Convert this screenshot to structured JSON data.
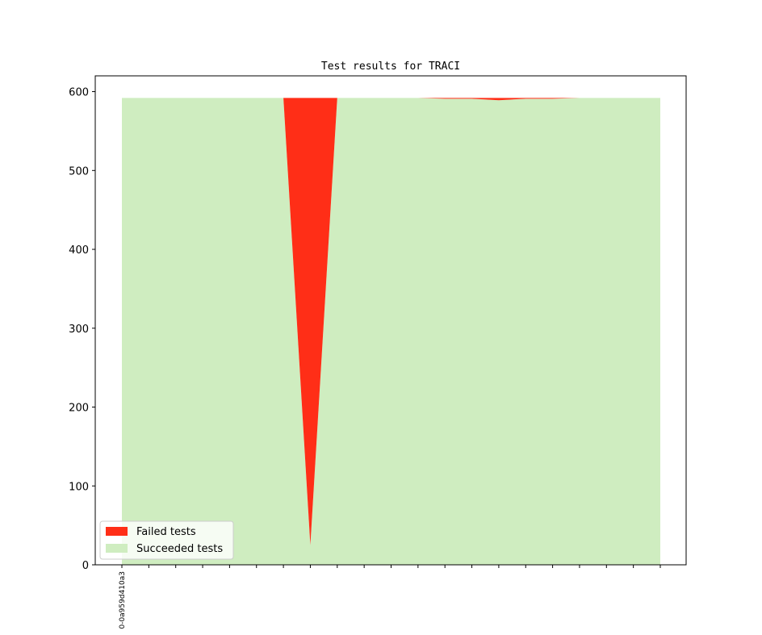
{
  "chart_data": {
    "type": "area",
    "title": "Test results for TRACI",
    "xlabel": "",
    "ylabel": "",
    "ylim": [
      0,
      620
    ],
    "yticks": [
      0,
      100,
      200,
      300,
      400,
      500,
      600
    ],
    "x_count": 21,
    "xtick_labels": [
      "0-0a959d410a3",
      "",
      "",
      "",
      "",
      "",
      "",
      "",
      "",
      "",
      "",
      "",
      "",
      "",
      "",
      "",
      "",
      "",
      "",
      "",
      ""
    ],
    "stacked": true,
    "legend": {
      "placement": "lower-left"
    },
    "grid": false,
    "series": [
      {
        "name": "Succeeded tests",
        "color": "#cfedc0",
        "values": [
          592,
          592,
          592,
          592,
          592,
          592,
          592,
          25,
          592,
          592,
          592,
          592,
          591,
          591,
          589,
          591,
          591,
          592,
          592,
          592,
          592
        ]
      },
      {
        "name": "Failed tests",
        "color": "#ff2e17",
        "values": [
          0,
          0,
          0,
          0,
          0,
          0,
          0,
          567,
          0,
          0,
          0,
          0,
          1,
          1,
          3,
          1,
          1,
          0,
          0,
          0,
          0
        ]
      }
    ]
  }
}
